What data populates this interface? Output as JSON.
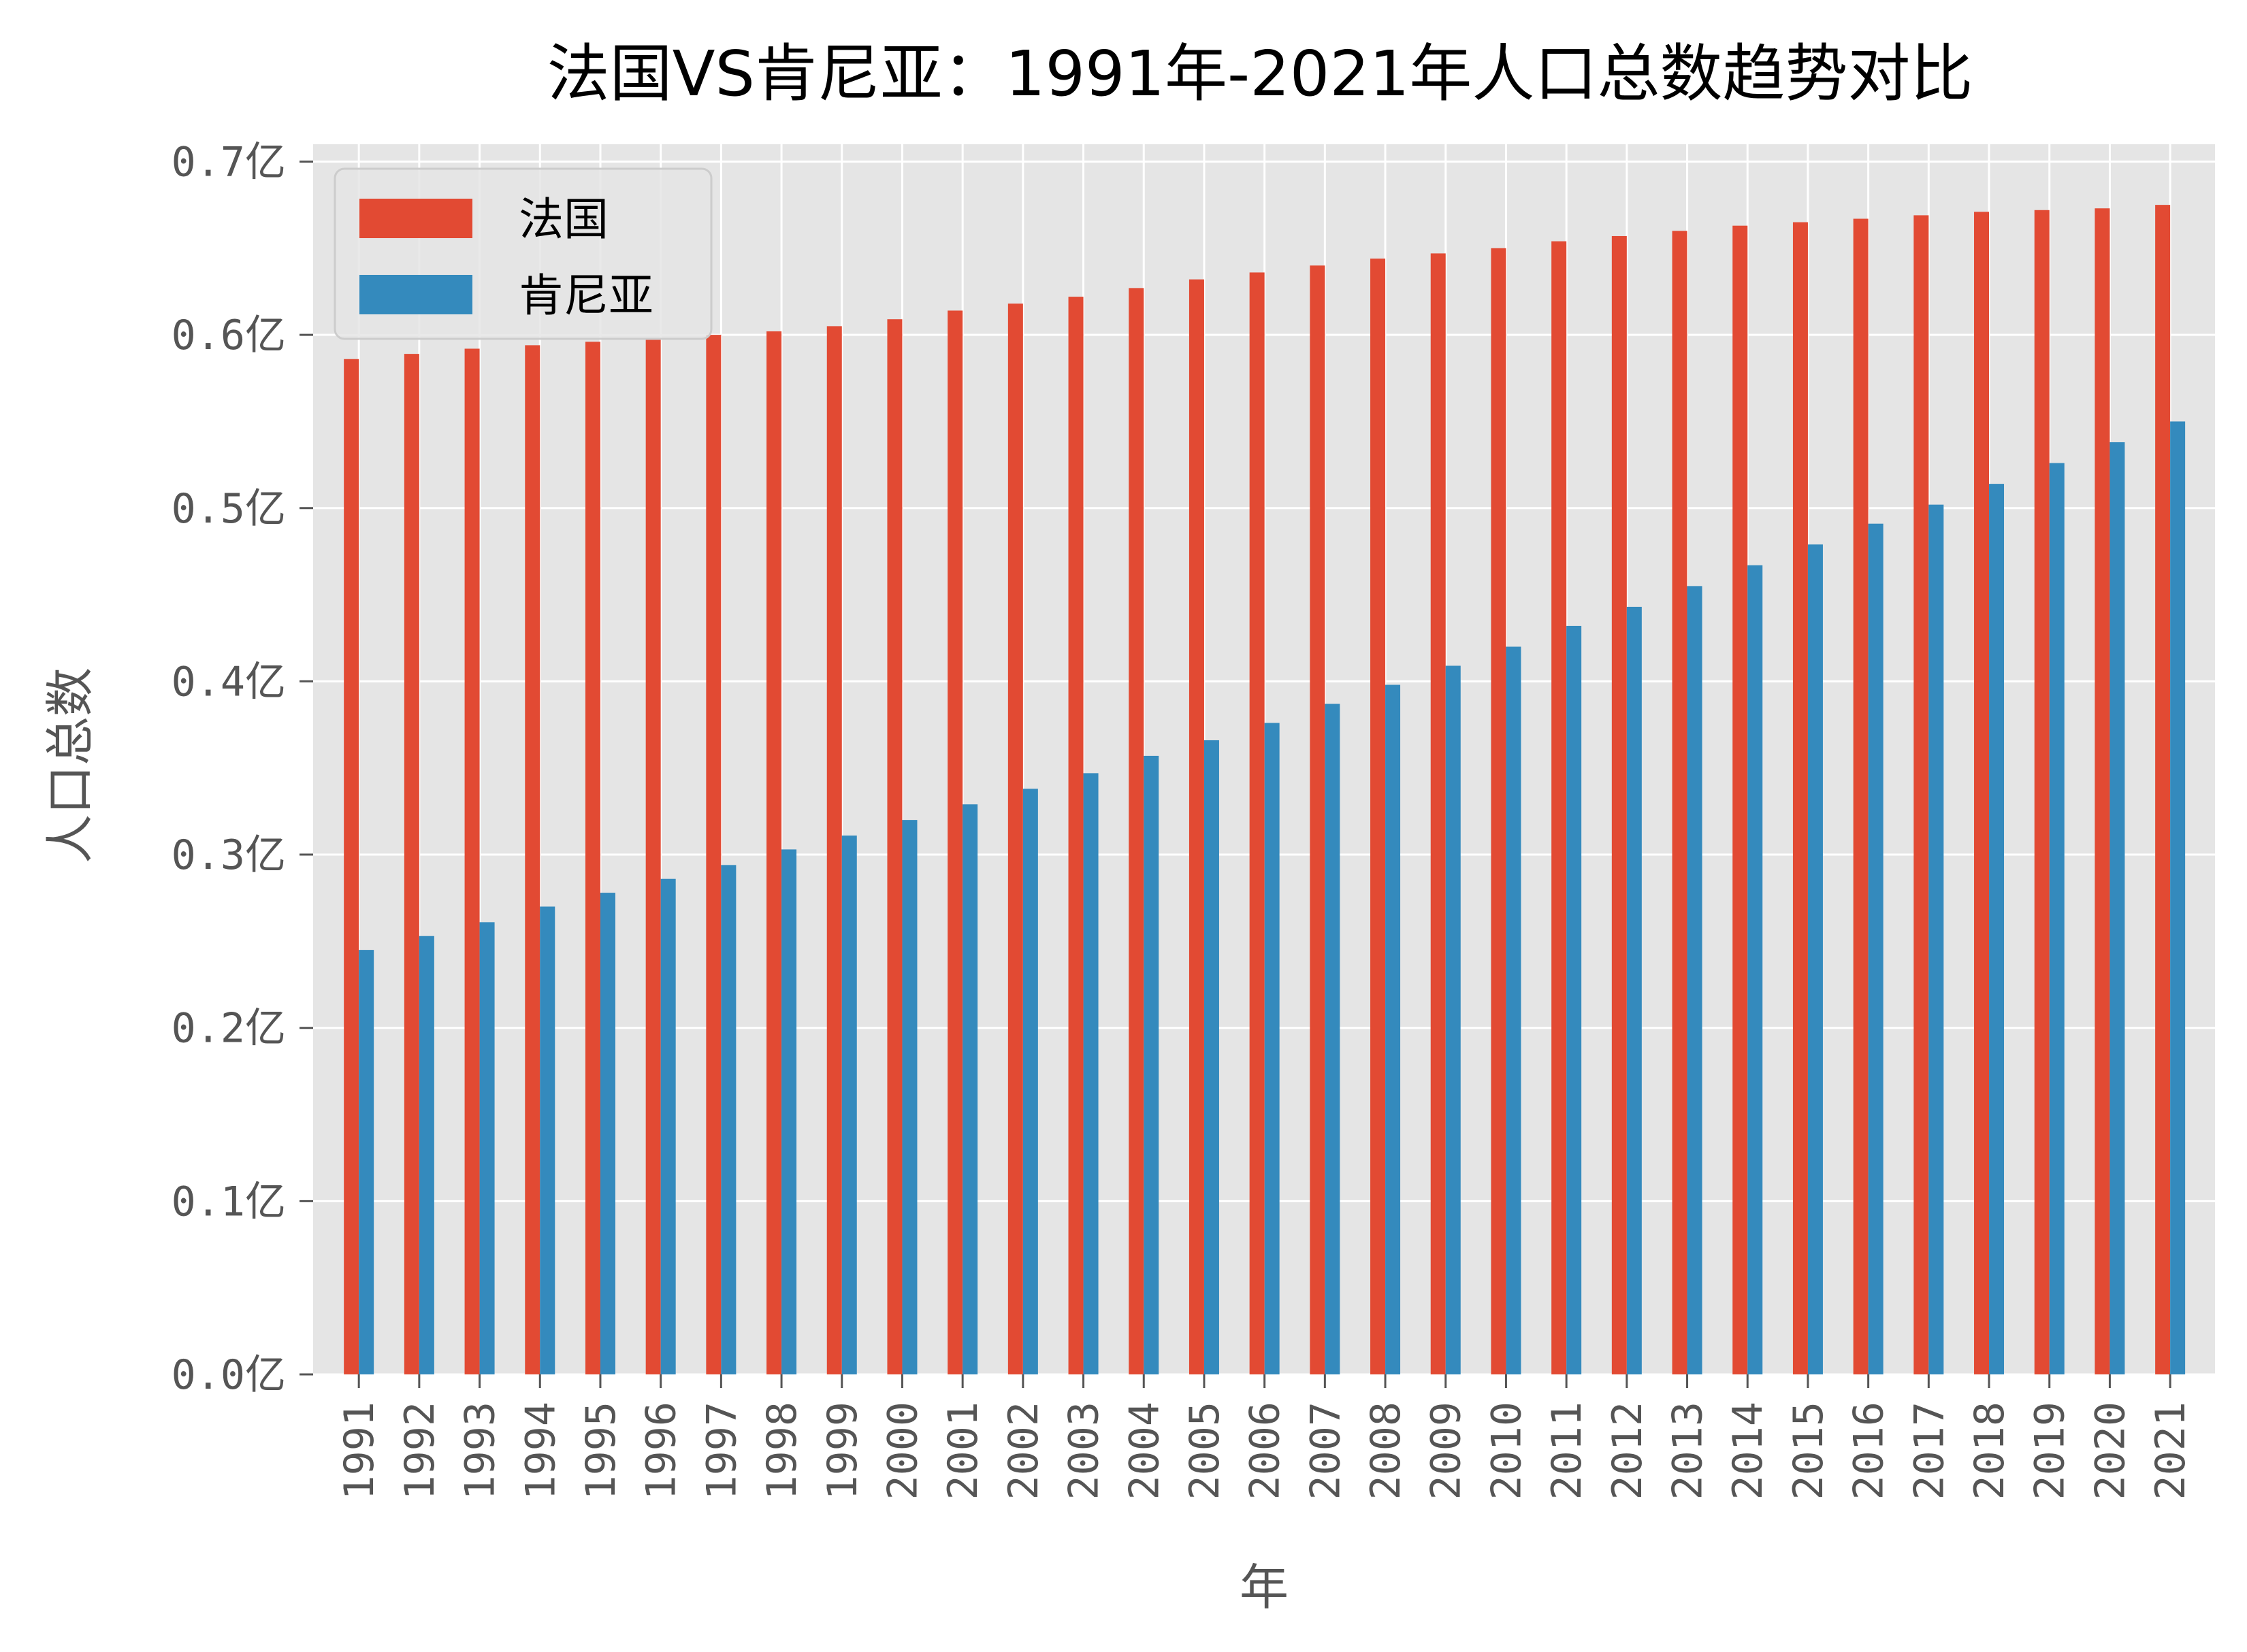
{
  "chart_data": {
    "type": "bar",
    "title": "法国VS肯尼亚：1991年-2021年人口总数趋势对比",
    "xlabel": "年",
    "ylabel": "人口总数",
    "categories": [
      "1991",
      "1992",
      "1993",
      "1994",
      "1995",
      "1996",
      "1997",
      "1998",
      "1999",
      "2000",
      "2001",
      "2002",
      "2003",
      "2004",
      "2005",
      "2006",
      "2007",
      "2008",
      "2009",
      "2010",
      "2011",
      "2012",
      "2013",
      "2014",
      "2015",
      "2016",
      "2017",
      "2018",
      "2019",
      "2020",
      "2021"
    ],
    "series": [
      {
        "name": "法国",
        "color": "#E24A33",
        "values": [
          0.586,
          0.589,
          0.592,
          0.594,
          0.596,
          0.598,
          0.6,
          0.602,
          0.605,
          0.609,
          0.614,
          0.618,
          0.622,
          0.627,
          0.632,
          0.636,
          0.64,
          0.644,
          0.647,
          0.65,
          0.654,
          0.657,
          0.66,
          0.663,
          0.665,
          0.667,
          0.669,
          0.671,
          0.672,
          0.673,
          0.675
        ]
      },
      {
        "name": "肯尼亚",
        "color": "#348ABD",
        "values": [
          0.245,
          0.253,
          0.261,
          0.27,
          0.278,
          0.286,
          0.294,
          0.303,
          0.311,
          0.32,
          0.329,
          0.338,
          0.347,
          0.357,
          0.366,
          0.376,
          0.387,
          0.398,
          0.409,
          0.42,
          0.432,
          0.443,
          0.455,
          0.467,
          0.479,
          0.491,
          0.502,
          0.514,
          0.526,
          0.538,
          0.55
        ]
      }
    ],
    "yticks": [
      {
        "value": 0.0,
        "label": "0.0亿"
      },
      {
        "value": 0.1,
        "label": "0.1亿"
      },
      {
        "value": 0.2,
        "label": "0.2亿"
      },
      {
        "value": 0.3,
        "label": "0.3亿"
      },
      {
        "value": 0.4,
        "label": "0.4亿"
      },
      {
        "value": 0.5,
        "label": "0.5亿"
      },
      {
        "value": 0.6,
        "label": "0.6亿"
      },
      {
        "value": 0.7,
        "label": "0.7亿"
      }
    ],
    "ylim": [
      0,
      0.71
    ],
    "grid": true,
    "legend_position": "top-left",
    "plot_background": "#E5E5E5",
    "grid_color": "#FFFFFF"
  }
}
